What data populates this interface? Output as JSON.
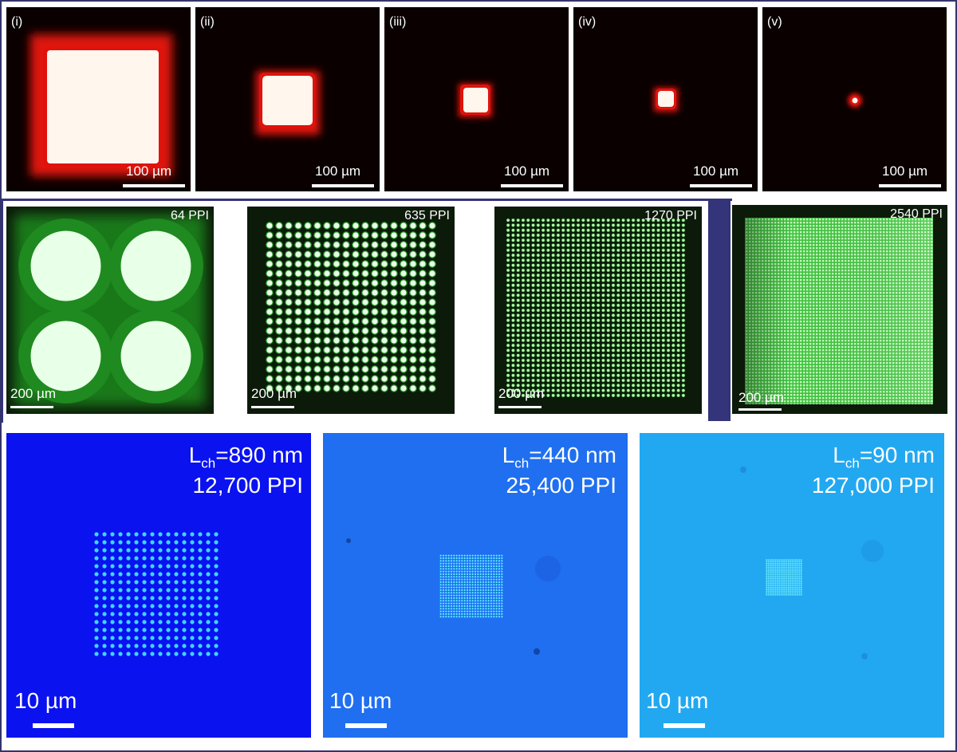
{
  "row1": {
    "panels": [
      {
        "tag": "(i)",
        "scale": "100 µm",
        "square_fraction": 1.0
      },
      {
        "tag": "(ii)",
        "scale": "100 µm",
        "square_fraction": 0.47
      },
      {
        "tag": "(iii)",
        "scale": "100 µm",
        "square_fraction": 0.24
      },
      {
        "tag": "(iv)",
        "scale": "100 µm",
        "square_fraction": 0.15
      },
      {
        "tag": "(v)",
        "scale": "100 µm",
        "square_fraction": 0.06
      }
    ],
    "colors": {
      "background": "#0a0000",
      "glow": "#e0120c",
      "core": "#fff6ee"
    }
  },
  "row2": {
    "panels": [
      {
        "ppi": "64 PPI",
        "scale": "200 µm",
        "grid": 2
      },
      {
        "ppi": "635 PPI",
        "scale": "200 µm",
        "grid": 18
      },
      {
        "ppi": "1270 PPI",
        "scale": "200 µm",
        "grid": 36
      },
      {
        "ppi": "2540 PPI",
        "scale": "200 µm",
        "grid": 72
      }
    ],
    "colors": {
      "background": "#0c1a0a",
      "glow": "#1f8a1f",
      "dot": "#e8ffe8",
      "frame": "#34347a"
    }
  },
  "row3": {
    "panels": [
      {
        "lch_prefix": "L",
        "lch_sub": "ch",
        "lch_value": "=890 nm",
        "ppi": "12,700 PPI",
        "scale": "10 µm",
        "bg": "#0a12f0",
        "grid": 16
      },
      {
        "lch_prefix": "L",
        "lch_sub": "ch",
        "lch_value": "=440 nm",
        "ppi": "25,400 PPI",
        "scale": "10 µm",
        "bg": "#1f6ff0",
        "grid": 24
      },
      {
        "lch_prefix": "L",
        "lch_sub": "ch",
        "lch_value": "=90 nm",
        "ppi": "127,000 PPI",
        "scale": "10 µm",
        "bg": "#22a8f0",
        "grid": 20
      }
    ]
  }
}
